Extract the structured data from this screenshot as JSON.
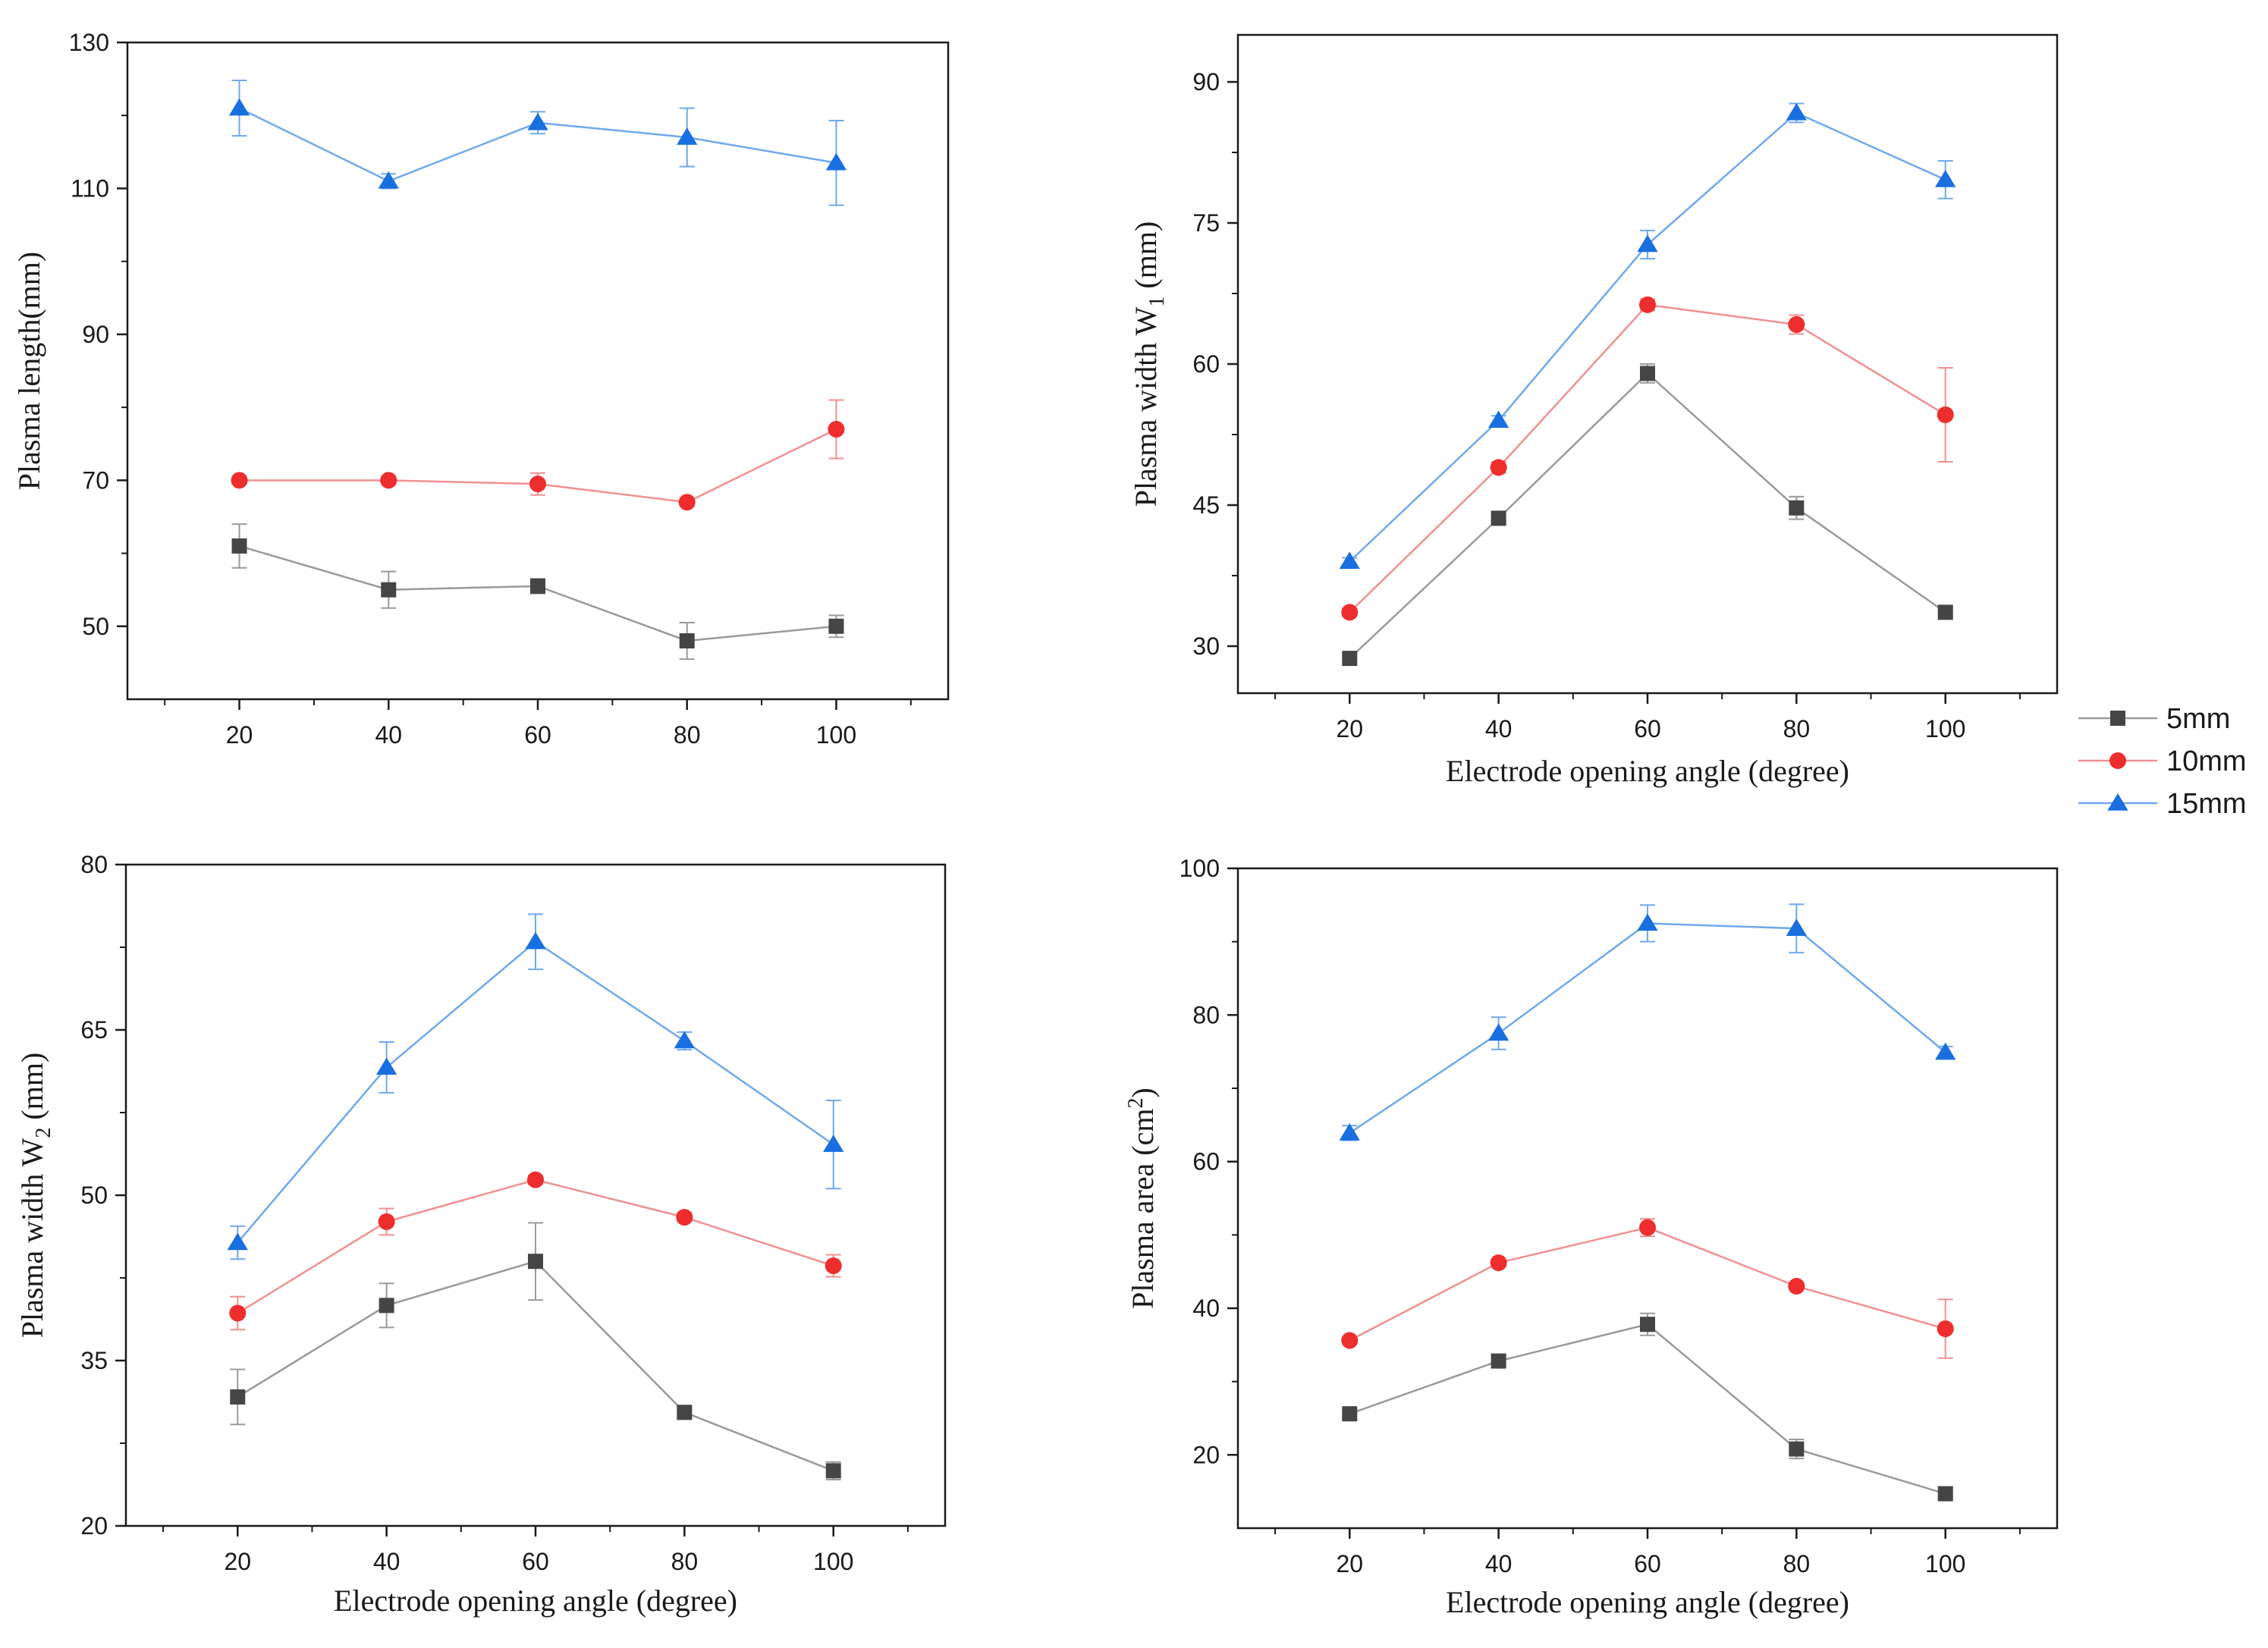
{
  "colors": {
    "5mm": "#454545",
    "10mm": "#ee2d2d",
    "15mm": "#1a6fe0",
    "line_5mm": "#9a9a9a",
    "line_10mm": "#f09090",
    "line_15mm": "#70a8ee",
    "axis": "#1a1a1a"
  },
  "legend": {
    "placement": "right, between top and bottom rows",
    "items": [
      {
        "label": "5mm",
        "marker": "square"
      },
      {
        "label": "10mm",
        "marker": "circle"
      },
      {
        "label": "15mm",
        "marker": "triangle"
      }
    ]
  },
  "chart_data": [
    {
      "type": "line",
      "panel": "top-left",
      "xlabel": "",
      "ylabel": "Plasma length(mm)",
      "ylabel_sub": "",
      "ylabel_suffix": "",
      "x": [
        20,
        40,
        60,
        80,
        100
      ],
      "xlim": [
        5,
        115
      ],
      "ylim": [
        40,
        130
      ],
      "yticks": [
        50,
        70,
        90,
        110,
        130
      ],
      "series": [
        {
          "name": "5mm",
          "marker": "square",
          "values": [
            61,
            55,
            55.5,
            48,
            50
          ],
          "errors": [
            3,
            2.5,
            1,
            2.5,
            1.5
          ]
        },
        {
          "name": "10mm",
          "marker": "circle",
          "values": [
            70,
            70,
            69.5,
            67,
            77
          ],
          "errors": [
            0.5,
            0.5,
            1.5,
            0.5,
            4
          ]
        },
        {
          "name": "15mm",
          "marker": "triangle",
          "values": [
            121,
            111,
            119,
            117,
            113.5
          ],
          "errors": [
            3.8,
            1,
            1.5,
            4,
            5.8
          ]
        }
      ]
    },
    {
      "type": "line",
      "panel": "top-right",
      "xlabel": "Electrode opening angle (degree)",
      "ylabel": "Plasma width W",
      "ylabel_sub": "1",
      "ylabel_suffix": " (mm)",
      "x": [
        20,
        40,
        60,
        80,
        100
      ],
      "xlim": [
        5,
        115
      ],
      "ylim": [
        25,
        95
      ],
      "yticks": [
        30,
        45,
        60,
        75,
        90
      ],
      "series": [
        {
          "name": "5mm",
          "marker": "square",
          "values": [
            28.7,
            43.6,
            59,
            44.7,
            33.6
          ],
          "errors": [
            0.5,
            0.5,
            1,
            1.2,
            0.4
          ]
        },
        {
          "name": "10mm",
          "marker": "circle",
          "values": [
            33.6,
            49,
            66.3,
            64.2,
            54.6
          ],
          "errors": [
            0.4,
            0.6,
            0.6,
            1,
            5
          ]
        },
        {
          "name": "15mm",
          "marker": "triangle",
          "values": [
            39,
            54,
            72.7,
            86.7,
            79.6
          ],
          "errors": [
            0.4,
            0.5,
            1.5,
            1,
            2
          ]
        }
      ]
    },
    {
      "type": "line",
      "panel": "bottom-left",
      "xlabel": "Electrode opening angle (degree)",
      "ylabel": "Plasma width W",
      "ylabel_sub": "2",
      "ylabel_suffix": " (mm)",
      "x": [
        20,
        40,
        60,
        80,
        100
      ],
      "xlim": [
        5,
        115
      ],
      "ylim": [
        20,
        80
      ],
      "yticks": [
        20,
        35,
        50,
        65,
        80
      ],
      "series": [
        {
          "name": "5mm",
          "marker": "square",
          "values": [
            31.7,
            40,
            44,
            30.3,
            25
          ],
          "errors": [
            2.5,
            2,
            3.5,
            0.5,
            0.8
          ]
        },
        {
          "name": "10mm",
          "marker": "circle",
          "values": [
            39.3,
            47.6,
            51.4,
            48,
            43.6
          ],
          "errors": [
            1.5,
            1.2,
            0.4,
            0.4,
            1
          ]
        },
        {
          "name": "15mm",
          "marker": "triangle",
          "values": [
            45.7,
            61.6,
            73,
            64,
            54.6
          ],
          "errors": [
            1.5,
            2.3,
            2.5,
            0.8,
            4
          ]
        }
      ]
    },
    {
      "type": "line",
      "panel": "bottom-right",
      "xlabel": "Electrode opening angle (degree)",
      "ylabel": "Plasma area (cm",
      "ylabel_sub": "",
      "ylabel_sup": "2",
      "ylabel_suffix": ")",
      "x": [
        20,
        40,
        60,
        80,
        100
      ],
      "xlim": [
        5,
        115
      ],
      "ylim": [
        10,
        100
      ],
      "yticks": [
        20,
        40,
        60,
        80,
        100
      ],
      "series": [
        {
          "name": "5mm",
          "marker": "square",
          "values": [
            25.6,
            32.8,
            37.8,
            20.8,
            14.7
          ],
          "errors": [
            0.5,
            0.8,
            1.5,
            1.3,
            0.4
          ]
        },
        {
          "name": "10mm",
          "marker": "circle",
          "values": [
            35.6,
            46.2,
            51,
            43,
            37.2
          ],
          "errors": [
            0.4,
            0.5,
            1.2,
            0.4,
            4
          ]
        },
        {
          "name": "15mm",
          "marker": "triangle",
          "values": [
            63.9,
            77.5,
            92.5,
            91.8,
            74.9
          ],
          "errors": [
            1,
            2.2,
            2.5,
            3.3,
            0.8
          ]
        }
      ]
    }
  ]
}
